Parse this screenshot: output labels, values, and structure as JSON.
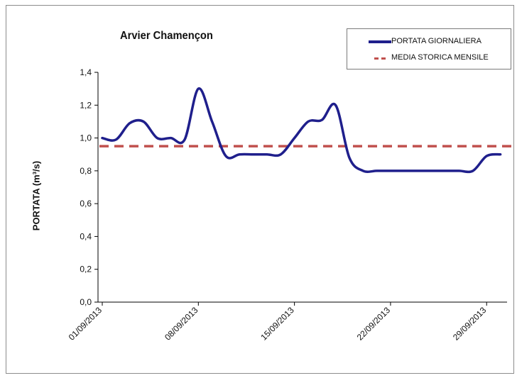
{
  "chart_data": {
    "type": "line",
    "title": "Arvier  Chamençon",
    "ylabel": "PORTATA (m³/s)",
    "xlabel": "",
    "ylim": [
      0,
      1.4
    ],
    "yticks": [
      "0,0",
      "0,2",
      "0,4",
      "0,6",
      "0,8",
      "1,0",
      "1,2",
      "1,4"
    ],
    "xticks": [
      "01/09/2013",
      "08/09/2013",
      "15/09/2013",
      "22/09/2013",
      "29/09/2013"
    ],
    "x_dates": [
      "01/09/2013",
      "02/09/2013",
      "03/09/2013",
      "04/09/2013",
      "05/09/2013",
      "06/09/2013",
      "07/09/2013",
      "08/09/2013",
      "09/09/2013",
      "10/09/2013",
      "11/09/2013",
      "12/09/2013",
      "13/09/2013",
      "14/09/2013",
      "15/09/2013",
      "16/09/2013",
      "17/09/2013",
      "18/09/2013",
      "19/09/2013",
      "20/09/2013",
      "21/09/2013",
      "22/09/2013",
      "23/09/2013",
      "24/09/2013",
      "25/09/2013",
      "26/09/2013",
      "27/09/2013",
      "28/09/2013",
      "29/09/2013",
      "30/09/2013"
    ],
    "grid": false,
    "legend_position": "top-right",
    "series": [
      {
        "name": "PORTATA GIORNALIERA",
        "style": "solid",
        "color": "#1f1f8c",
        "values": [
          1.0,
          0.99,
          1.09,
          1.1,
          1.0,
          1.0,
          0.99,
          1.3,
          1.1,
          0.89,
          0.9,
          0.9,
          0.9,
          0.9,
          1.0,
          1.1,
          1.11,
          1.2,
          0.88,
          0.8,
          0.8,
          0.8,
          0.8,
          0.8,
          0.8,
          0.8,
          0.8,
          0.8,
          0.89,
          0.9
        ]
      },
      {
        "name": "MEDIA STORICA MENSILE",
        "style": "dashed",
        "color": "#c0504d",
        "values": [
          0.95,
          0.95,
          0.95,
          0.95,
          0.95,
          0.95,
          0.95,
          0.95,
          0.95,
          0.95,
          0.95,
          0.95,
          0.95,
          0.95,
          0.95,
          0.95,
          0.95,
          0.95,
          0.95,
          0.95,
          0.95,
          0.95,
          0.95,
          0.95,
          0.95,
          0.95,
          0.95,
          0.95,
          0.95,
          0.95
        ]
      }
    ]
  }
}
